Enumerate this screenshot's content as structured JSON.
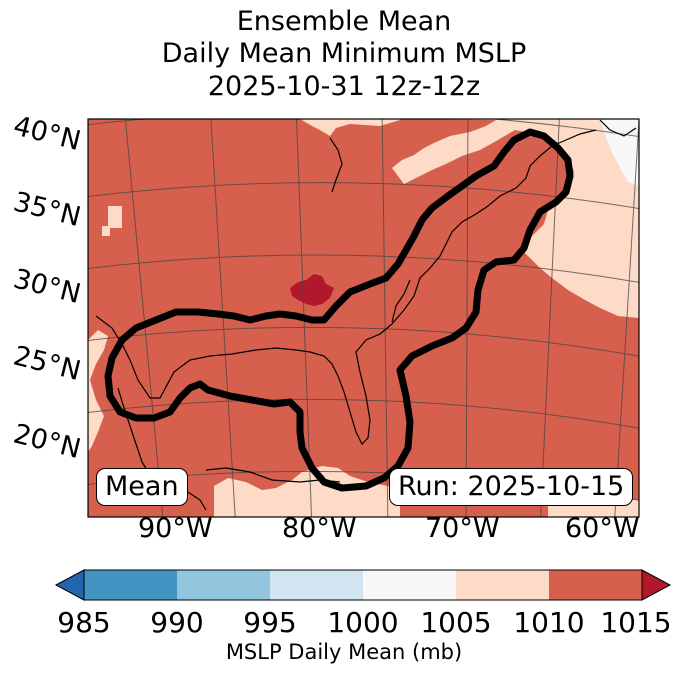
{
  "title": {
    "line1": "Ensemble Mean",
    "line2": "Daily Mean Minimum MSLP",
    "line3": "2025-10-31 12z-12z"
  },
  "map": {
    "lat_labels": [
      "40°N",
      "35°N",
      "30°N",
      "25°N",
      "20°N"
    ],
    "lon_labels": [
      "90°W",
      "80°W",
      "70°W",
      "60°W"
    ],
    "mean_label": "Mean",
    "run_label": "Run: 2025-10-15",
    "field_colors": {
      "1000-1005": "#f7f7f7",
      "1005-1010": "#fddbc7",
      "1010-1015": "#d6604d",
      ">1015": "#b2182b"
    }
  },
  "colorbar": {
    "label": "MSLP Daily Mean (mb)",
    "ticks": [
      "985",
      "990",
      "995",
      "1000",
      "1005",
      "1010",
      "1015"
    ],
    "under_color": "#2166ac",
    "over_color": "#b2182b",
    "bins": [
      {
        "range": "985-990",
        "color": "#4393c3"
      },
      {
        "range": "990-995",
        "color": "#92c5de"
      },
      {
        "range": "995-1000",
        "color": "#d1e5f0"
      },
      {
        "range": "1000-1005",
        "color": "#f7f7f7"
      },
      {
        "range": "1005-1010",
        "color": "#fddbc7"
      },
      {
        "range": "1010-1015",
        "color": "#d6604d"
      }
    ]
  }
}
